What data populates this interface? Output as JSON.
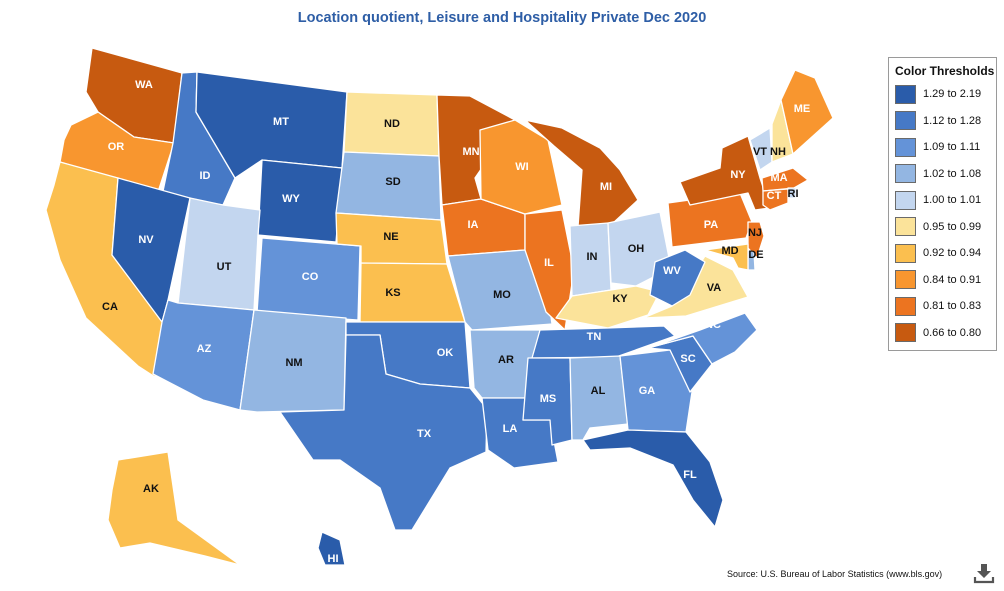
{
  "title": "Location quotient, Leisure and Hospitality Private Dec 2020",
  "legend": {
    "title": "Color Thresholds",
    "items": [
      {
        "label": "1.29 to 2.19",
        "color": "#2a5caa"
      },
      {
        "label": "1.12 to 1.28",
        "color": "#4679c6"
      },
      {
        "label": "1.09 to 1.11",
        "color": "#6493d8"
      },
      {
        "label": "1.02 to 1.08",
        "color": "#93b6e2"
      },
      {
        "label": "1.00 to 1.01",
        "color": "#c3d6ef"
      },
      {
        "label": "0.95 to 0.99",
        "color": "#fbe39a"
      },
      {
        "label": "0.92 to 0.94",
        "color": "#fbbf4f"
      },
      {
        "label": "0.84 to 0.91",
        "color": "#f8962f"
      },
      {
        "label": "0.81 to 0.83",
        "color": "#ec7420"
      },
      {
        "label": "0.66 to 0.80",
        "color": "#c75a10"
      }
    ]
  },
  "states": [
    {
      "abbr": "WA",
      "bin": 9
    },
    {
      "abbr": "OR",
      "bin": 7
    },
    {
      "abbr": "CA",
      "bin": 6
    },
    {
      "abbr": "ID",
      "bin": 1
    },
    {
      "abbr": "NV",
      "bin": 0
    },
    {
      "abbr": "MT",
      "bin": 0
    },
    {
      "abbr": "WY",
      "bin": 0
    },
    {
      "abbr": "UT",
      "bin": 4
    },
    {
      "abbr": "AZ",
      "bin": 2
    },
    {
      "abbr": "CO",
      "bin": 2
    },
    {
      "abbr": "NM",
      "bin": 3
    },
    {
      "abbr": "ND",
      "bin": 5
    },
    {
      "abbr": "SD",
      "bin": 3
    },
    {
      "abbr": "NE",
      "bin": 6
    },
    {
      "abbr": "KS",
      "bin": 6
    },
    {
      "abbr": "OK",
      "bin": 1
    },
    {
      "abbr": "TX",
      "bin": 1
    },
    {
      "abbr": "MN",
      "bin": 9
    },
    {
      "abbr": "IA",
      "bin": 8
    },
    {
      "abbr": "MO",
      "bin": 3
    },
    {
      "abbr": "AR",
      "bin": 3
    },
    {
      "abbr": "LA",
      "bin": 1
    },
    {
      "abbr": "WI",
      "bin": 7
    },
    {
      "abbr": "IL",
      "bin": 8
    },
    {
      "abbr": "MI",
      "bin": 9
    },
    {
      "abbr": "IN",
      "bin": 4
    },
    {
      "abbr": "OH",
      "bin": 4
    },
    {
      "abbr": "KY",
      "bin": 5
    },
    {
      "abbr": "TN",
      "bin": 1
    },
    {
      "abbr": "MS",
      "bin": 1
    },
    {
      "abbr": "AL",
      "bin": 3
    },
    {
      "abbr": "GA",
      "bin": 2
    },
    {
      "abbr": "FL",
      "bin": 0
    },
    {
      "abbr": "SC",
      "bin": 1
    },
    {
      "abbr": "NC",
      "bin": 2
    },
    {
      "abbr": "VA",
      "bin": 5
    },
    {
      "abbr": "WV",
      "bin": 1
    },
    {
      "abbr": "PA",
      "bin": 8
    },
    {
      "abbr": "NY",
      "bin": 9
    },
    {
      "abbr": "VT",
      "bin": 4
    },
    {
      "abbr": "NH",
      "bin": 5
    },
    {
      "abbr": "ME",
      "bin": 7
    },
    {
      "abbr": "MA",
      "bin": 8
    },
    {
      "abbr": "RI",
      "bin": 4
    },
    {
      "abbr": "CT",
      "bin": 8
    },
    {
      "abbr": "NJ",
      "bin": 8
    },
    {
      "abbr": "DE",
      "bin": 3
    },
    {
      "abbr": "MD",
      "bin": 6
    },
    {
      "abbr": "AK",
      "bin": 6
    },
    {
      "abbr": "HI",
      "bin": 0
    }
  ],
  "source": "Source: U.S. Bureau of Labor Statistics (www.bls.gov)",
  "download_icon": "download-icon"
}
